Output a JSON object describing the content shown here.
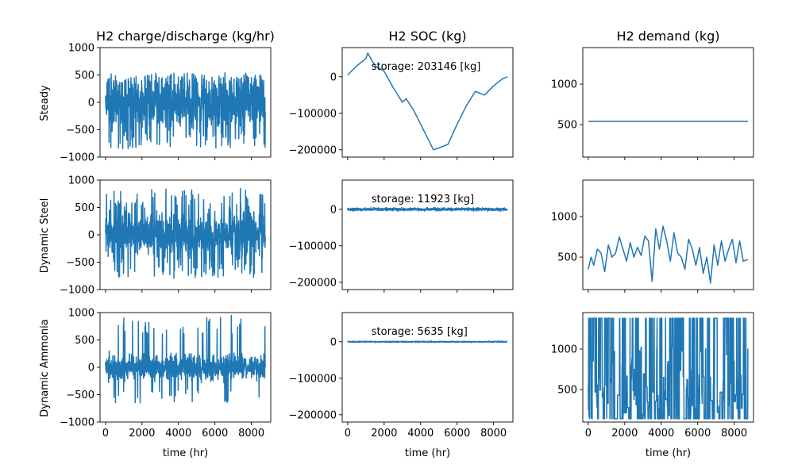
{
  "figure": {
    "col_titles": [
      "H2 charge/discharge (kg/hr)",
      "H2 SOC (kg)",
      "H2 demand (kg)"
    ],
    "row_labels": [
      "Steady",
      "Dynamic Steel",
      "Dynamic Ammonia"
    ],
    "xlabel": "time (hr)",
    "line_color": "#1f77b4"
  },
  "chart_data": [
    {
      "type": "line",
      "row": "Steady",
      "title": "H2 charge/discharge (kg/hr)",
      "xlim": [
        -300,
        9060
      ],
      "ylim": [
        -1000,
        1000
      ],
      "xticks": [
        0,
        2000,
        4000,
        6000,
        8000
      ],
      "yticks": [
        -1000,
        -500,
        0,
        500,
        1000
      ],
      "signal": {
        "kind": "noise",
        "x_end": 8760,
        "min": -850,
        "max": 540,
        "clip_top": 540,
        "center": 20,
        "spread": 330,
        "spikes": 0.15,
        "spike_low": -850,
        "spike_high": 540
      }
    },
    {
      "type": "line",
      "row": "Steady",
      "title": "H2 SOC (kg)",
      "annotation": "storage: 203146 [kg]",
      "xlim": [
        -300,
        9060
      ],
      "ylim": [
        -220000,
        80000
      ],
      "xticks": [
        0,
        2000,
        4000,
        6000,
        8000
      ],
      "yticks": [
        -200000,
        -100000,
        0
      ],
      "x": [
        0,
        500,
        1000,
        1100,
        1500,
        2000,
        2500,
        3000,
        3200,
        3600,
        4000,
        4500,
        4700,
        5000,
        5500,
        6000,
        6500,
        7000,
        7500,
        8000,
        8500,
        8760
      ],
      "y": [
        5000,
        30000,
        50000,
        65000,
        30000,
        15000,
        -30000,
        -70000,
        -60000,
        -90000,
        -130000,
        -180000,
        -200000,
        -195000,
        -185000,
        -130000,
        -80000,
        -40000,
        -50000,
        -25000,
        -5000,
        0
      ]
    },
    {
      "type": "line",
      "row": "Steady",
      "title": "H2 demand (kg)",
      "xlim": [
        -300,
        9060
      ],
      "ylim": [
        100,
        1450
      ],
      "xticks": [
        0,
        2000,
        4000,
        6000,
        8000
      ],
      "yticks": [
        500,
        1000
      ],
      "x": [
        0,
        8760
      ],
      "y": [
        540,
        540
      ]
    },
    {
      "type": "line",
      "row": "Dynamic Steel",
      "title": "H2 charge/discharge (kg/hr)",
      "xlim": [
        -300,
        9060
      ],
      "ylim": [
        -1000,
        1000
      ],
      "xticks": [
        0,
        2000,
        4000,
        6000,
        8000
      ],
      "yticks": [
        -1000,
        -500,
        0,
        500,
        1000
      ],
      "signal": {
        "kind": "noise",
        "x_end": 8760,
        "min": -950,
        "max": 870,
        "center": 0,
        "spread": 300,
        "spikes": 0.12,
        "spike_low": -800,
        "spike_high": 850
      }
    },
    {
      "type": "line",
      "row": "Dynamic Steel",
      "title": "H2 SOC (kg)",
      "annotation": "storage: 11923 [kg]",
      "xlim": [
        -300,
        9060
      ],
      "ylim": [
        -220000,
        80000
      ],
      "xticks": [
        0,
        2000,
        4000,
        6000,
        8000
      ],
      "yticks": [
        -200000,
        -100000,
        0
      ],
      "signal": {
        "kind": "noise",
        "x_end": 8760,
        "min": -8000,
        "max": 8000,
        "center": 0,
        "spread": 3000,
        "spikes": 0.0,
        "spike_low": 0,
        "spike_high": 0
      }
    },
    {
      "type": "line",
      "row": "Dynamic Steel",
      "title": "H2 demand (kg)",
      "xlim": [
        -300,
        9060
      ],
      "ylim": [
        100,
        1450
      ],
      "xticks": [
        0,
        2000,
        4000,
        6000,
        8000
      ],
      "yticks": [
        500,
        1000
      ],
      "x": [
        0,
        150,
        300,
        500,
        700,
        900,
        1100,
        1300,
        1500,
        1700,
        1900,
        2100,
        2300,
        2500,
        2700,
        2900,
        3100,
        3300,
        3500,
        3700,
        3900,
        4100,
        4300,
        4500,
        4700,
        4900,
        5100,
        5300,
        5500,
        5700,
        5900,
        6100,
        6300,
        6500,
        6700,
        6900,
        7100,
        7300,
        7500,
        7700,
        7900,
        8100,
        8300,
        8500,
        8760
      ],
      "y": [
        350,
        500,
        400,
        600,
        550,
        320,
        650,
        500,
        550,
        750,
        600,
        450,
        680,
        500,
        620,
        520,
        760,
        700,
        200,
        850,
        600,
        880,
        700,
        450,
        800,
        550,
        500,
        350,
        720,
        600,
        400,
        620,
        300,
        500,
        180,
        650,
        400,
        700,
        450,
        600,
        720,
        430,
        700,
        450,
        470
      ]
    },
    {
      "type": "line",
      "row": "Dynamic Ammonia",
      "title": "H2 charge/discharge (kg/hr)",
      "xlim": [
        -300,
        9060
      ],
      "ylim": [
        -1000,
        1000
      ],
      "xticks": [
        0,
        2000,
        4000,
        6000,
        8000
      ],
      "yticks": [
        -1000,
        -500,
        0,
        500,
        1000
      ],
      "signal": {
        "kind": "noise",
        "x_end": 8760,
        "min": -720,
        "max": 960,
        "center": 0,
        "spread": 170,
        "spikes": 0.06,
        "spike_low": -650,
        "spike_high": 950
      }
    },
    {
      "type": "line",
      "row": "Dynamic Ammonia",
      "title": "H2 SOC (kg)",
      "annotation": "storage: 5635 [kg]",
      "xlim": [
        -300,
        9060
      ],
      "ylim": [
        -220000,
        80000
      ],
      "xticks": [
        0,
        2000,
        4000,
        6000,
        8000
      ],
      "yticks": [
        -200000,
        -100000,
        0
      ],
      "signal": {
        "kind": "noise",
        "x_end": 8760,
        "min": -3000,
        "max": 3000,
        "center": 0,
        "spread": 1200,
        "spikes": 0.0,
        "spike_low": 0,
        "spike_high": 0
      }
    },
    {
      "type": "line",
      "row": "Dynamic Ammonia",
      "title": "H2 demand (kg)",
      "xlim": [
        -300,
        9060
      ],
      "ylim": [
        100,
        1450
      ],
      "xticks": [
        0,
        2000,
        4000,
        6000,
        8000
      ],
      "yticks": [
        500,
        1000
      ],
      "signal": {
        "kind": "square",
        "x_end": 8760,
        "min": 140,
        "max": 1380,
        "center": 550,
        "spread": 500,
        "spikes": 0.5,
        "spike_low": 140,
        "spike_high": 1380
      }
    }
  ]
}
